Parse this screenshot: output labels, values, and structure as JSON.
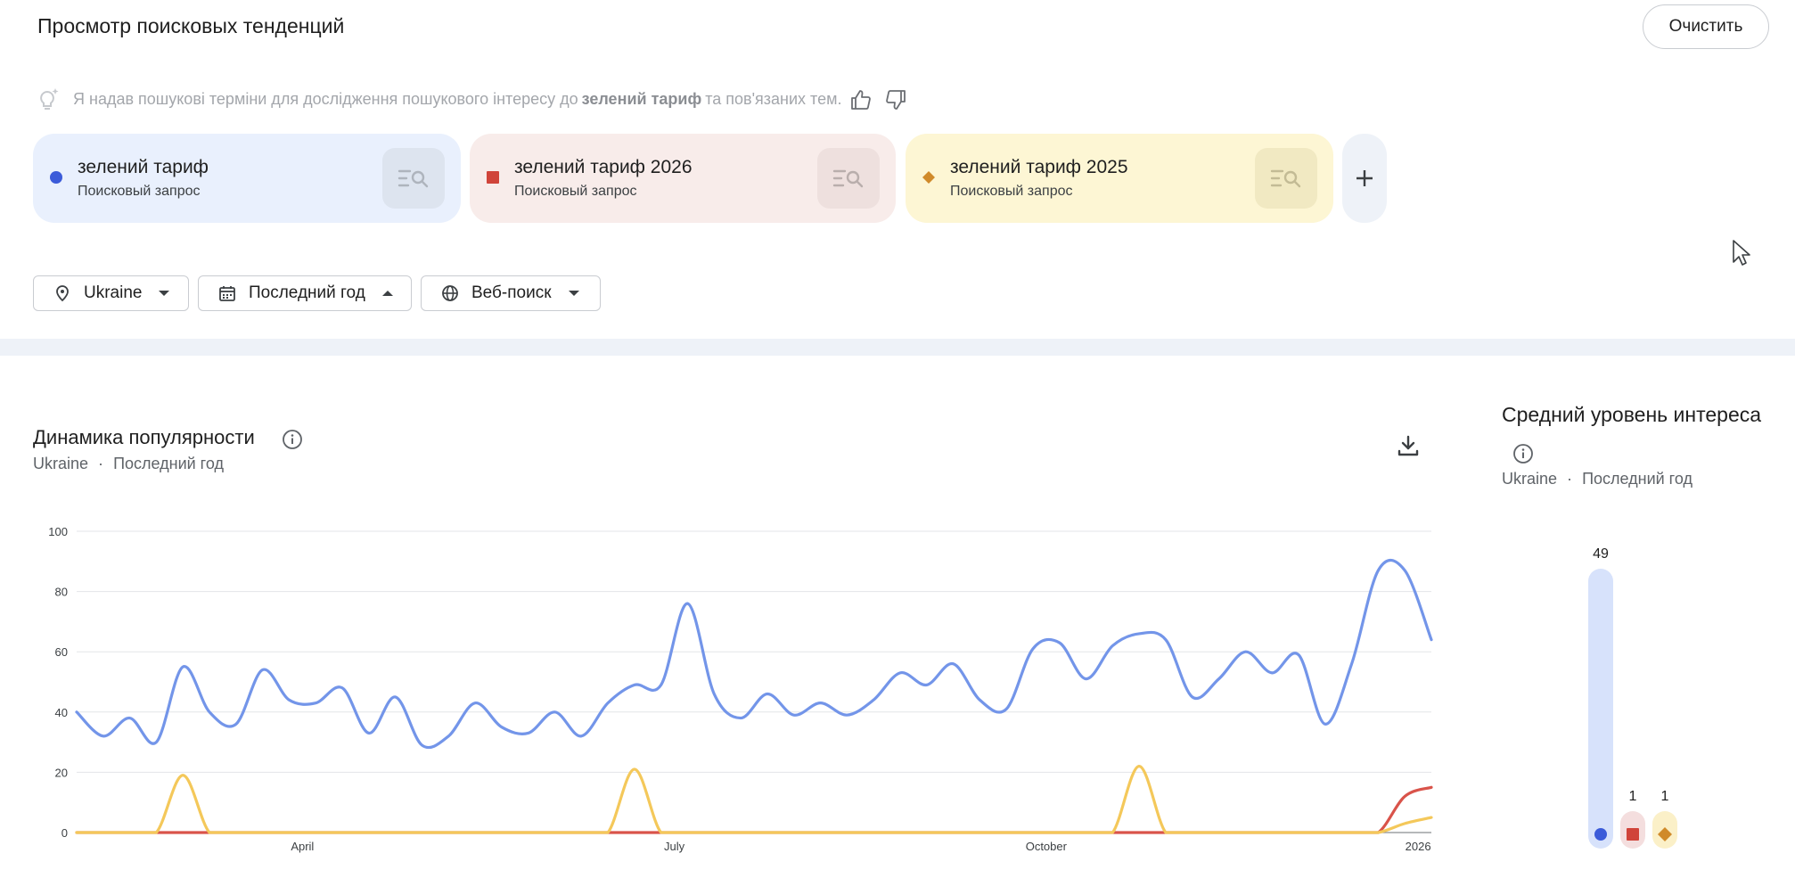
{
  "header": {
    "title": "Просмотр поисковых тенденций",
    "clear_label": "Очистить"
  },
  "hint": {
    "before": "Я надав пошукові терміни для дослідження пошукового інтересу до",
    "term": "зелений тариф",
    "after": "та пов'язаних тем."
  },
  "terms": [
    {
      "name": "зелений тариф",
      "type": "Поисковый запрос",
      "color": "#3b5bd9",
      "marker": "circle",
      "bg": "#e9f0fd"
    },
    {
      "name": "зелений тариф 2026",
      "type": "Поисковый запрос",
      "color": "#d0443a",
      "marker": "square",
      "bg": "#f8ecea"
    },
    {
      "name": "зелений тариф 2025",
      "type": "Поисковый запрос",
      "color": "#d08a2a",
      "marker": "diamond",
      "bg": "#fdf6d4"
    }
  ],
  "filters": {
    "region": "Ukraine",
    "period": "Последний год",
    "property": "Веб-поиск"
  },
  "trend": {
    "title": "Динамика популярности",
    "region": "Ukraine",
    "separator": "·",
    "period": "Последний год"
  },
  "average": {
    "title": "Средний уровень интереса",
    "region": "Ukraine",
    "separator": "·",
    "period": "Последний год",
    "values": [
      49,
      1,
      1
    ],
    "labels": [
      "49",
      "1",
      "1"
    ]
  },
  "chart_data": {
    "type": "line",
    "ylim": [
      0,
      100
    ],
    "yticks": [
      0,
      20,
      40,
      60,
      80,
      100
    ],
    "ytick_labels": [
      "0",
      "20",
      "40",
      "60",
      "80",
      "100"
    ],
    "xtick_labels": [
      "April",
      "July",
      "October",
      "2026"
    ],
    "xtick_positions": [
      8.5,
      22.5,
      36.5,
      50.5
    ],
    "grid": true,
    "series": [
      {
        "name": "зелений тариф",
        "color": "#7395e9",
        "values": [
          40,
          32,
          38,
          30,
          55,
          40,
          36,
          54,
          44,
          43,
          48,
          33,
          45,
          29,
          32,
          43,
          35,
          33,
          40,
          32,
          43,
          49,
          49,
          76,
          46,
          38,
          46,
          39,
          43,
          39,
          44,
          53,
          49,
          56,
          44,
          41,
          61,
          63,
          51,
          62,
          66,
          64,
          45,
          51,
          60,
          53,
          59,
          36,
          56,
          87,
          87,
          64
        ]
      },
      {
        "name": "зелений тариф 2026",
        "color": "#d9534a",
        "values": [
          0,
          0,
          0,
          0,
          0,
          0,
          0,
          0,
          0,
          0,
          0,
          0,
          0,
          0,
          0,
          0,
          0,
          0,
          0,
          0,
          0,
          0,
          0,
          0,
          0,
          0,
          0,
          0,
          0,
          0,
          0,
          0,
          0,
          0,
          0,
          0,
          0,
          0,
          0,
          0,
          0,
          0,
          0,
          0,
          0,
          0,
          0,
          0,
          0,
          0,
          12,
          15
        ]
      },
      {
        "name": "зелений тариф 2025",
        "color": "#f4c85a",
        "values": [
          0,
          0,
          0,
          0,
          19,
          0,
          0,
          0,
          0,
          0,
          0,
          0,
          0,
          0,
          0,
          0,
          0,
          0,
          0,
          0,
          0,
          21,
          0,
          0,
          0,
          0,
          0,
          0,
          0,
          0,
          0,
          0,
          0,
          0,
          0,
          0,
          0,
          0,
          0,
          0,
          22,
          0,
          0,
          0,
          0,
          0,
          0,
          0,
          0,
          0,
          3,
          5
        ]
      }
    ]
  }
}
